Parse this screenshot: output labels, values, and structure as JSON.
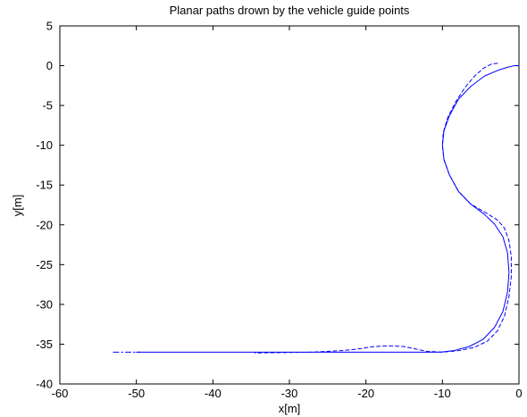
{
  "colors": {
    "background": "#ffffff",
    "axes": "#000000",
    "series": "#0000ff"
  },
  "chart_data": {
    "type": "line",
    "title": "Planar paths drown by the vehicle guide points",
    "xlabel": "x[m]",
    "ylabel": "y[m]",
    "xlim": [
      -60,
      0
    ],
    "ylim": [
      -40,
      5
    ],
    "xticks": [
      -60,
      -50,
      -40,
      -30,
      -20,
      -10,
      0
    ],
    "yticks": [
      5,
      0,
      -5,
      -10,
      -15,
      -20,
      -25,
      -30,
      -35,
      -40
    ],
    "xtick_labels": [
      "-60",
      "-50",
      "-40",
      "-30",
      "-20",
      "-10",
      "0"
    ],
    "ytick_labels": [
      "5",
      "0",
      "-5",
      "-10",
      "-15",
      "-20",
      "-25",
      "-30",
      "-35",
      "-40"
    ],
    "grid": false,
    "legend": null,
    "series": [
      {
        "style": "solid",
        "color": "#0000ff",
        "x": [
          0,
          -0.6,
          -1.5,
          -2.8,
          -4.5,
          -6.3,
          -7.9,
          -9.1,
          -9.8,
          -10,
          -9.8,
          -9.1,
          -7.9,
          -6.3,
          -4.5,
          -3.2,
          -2.1,
          -1.5,
          -1.3,
          -1.5,
          -2.1,
          -3.2,
          -4.7,
          -6.5,
          -8.5,
          -10.3,
          -11,
          -20,
          -30,
          -40,
          -50
        ],
        "y": [
          0,
          0,
          -0.2,
          -0.6,
          -1.3,
          -2.6,
          -4.2,
          -6.3,
          -8.2,
          -10,
          -11.8,
          -13.7,
          -15.8,
          -17.4,
          -18.7,
          -19.9,
          -21.5,
          -23.5,
          -26,
          -28.5,
          -30.9,
          -32.9,
          -34.4,
          -35.3,
          -35.8,
          -36,
          -36,
          -36,
          -36,
          -36,
          -36
        ]
      },
      {
        "style": "dashed",
        "color": "#0000ff",
        "x": [
          -2.8,
          -3.6,
          -4.6,
          -5.8,
          -7.1,
          -8.3,
          -9.3,
          -9.9,
          -10,
          -9.8,
          -9.1,
          -7.9,
          -6.3,
          -4.3,
          -2.8,
          -1.9,
          -1.3,
          -1.0,
          -1.0,
          -1.3,
          -1.9,
          -2.8,
          -4.1,
          -5.8,
          -7.8,
          -10.0,
          -12.0,
          -13.5,
          -15.0,
          -17.0,
          -19.0,
          -21.0,
          -23.0,
          -25.0,
          -27.0,
          -34.5
        ],
        "y": [
          0.3,
          0.2,
          -0.3,
          -1.3,
          -2.8,
          -4.6,
          -6.5,
          -8.4,
          -10.0,
          -11.8,
          -13.7,
          -15.8,
          -17.4,
          -18.5,
          -19.4,
          -20.4,
          -22.0,
          -24.0,
          -26.5,
          -29.0,
          -31.5,
          -33.3,
          -34.6,
          -35.4,
          -35.8,
          -36.0,
          -35.9,
          -35.6,
          -35.3,
          -35.2,
          -35.3,
          -35.6,
          -35.8,
          -35.9,
          -36.0,
          -36.1
        ]
      },
      {
        "style": "dashdot",
        "color": "#0000ff",
        "x": [
          -53,
          -49.5
        ],
        "y": [
          -36,
          -36
        ]
      }
    ]
  }
}
